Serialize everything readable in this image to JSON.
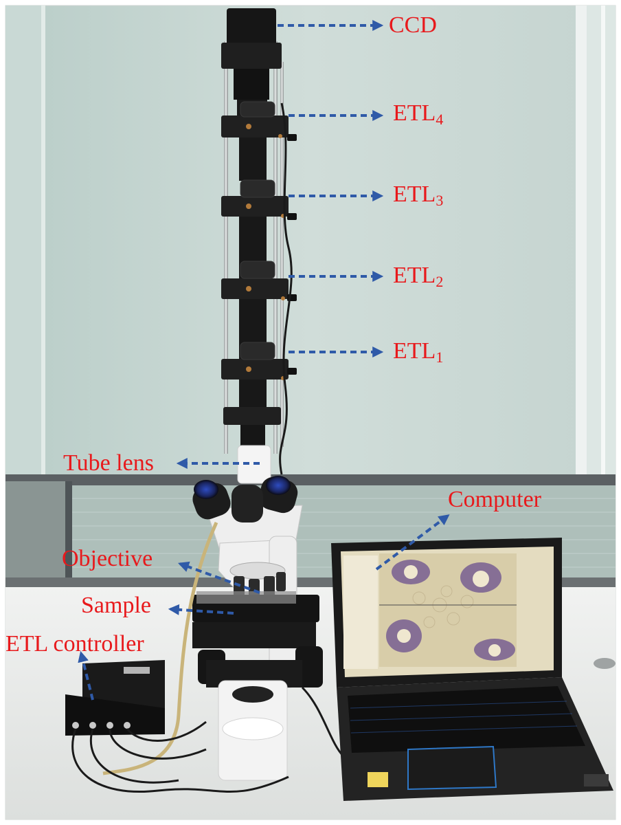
{
  "labels": {
    "ccd": "CCD",
    "etl4": {
      "main": "ETL",
      "sub": "4"
    },
    "etl3": {
      "main": "ETL",
      "sub": "3"
    },
    "etl2": {
      "main": "ETL",
      "sub": "2"
    },
    "etl1": {
      "main": "ETL",
      "sub": "1"
    },
    "tube_lens": "Tube lens",
    "computer": "Computer",
    "objective": "Objective",
    "sample": "Sample",
    "etl_controller": "ETL controller"
  },
  "colors": {
    "label_text": "#e8191c",
    "arrow": "#2f5aa8",
    "wall_glass": "#c3d3cf",
    "desk": "#e9ebe9",
    "microscope_body": "#f2f2f2",
    "camera_black": "#1b1b1b",
    "laptop_screen_bg": "#dcd3b3",
    "tissue_purple": "#6b4f8f"
  }
}
